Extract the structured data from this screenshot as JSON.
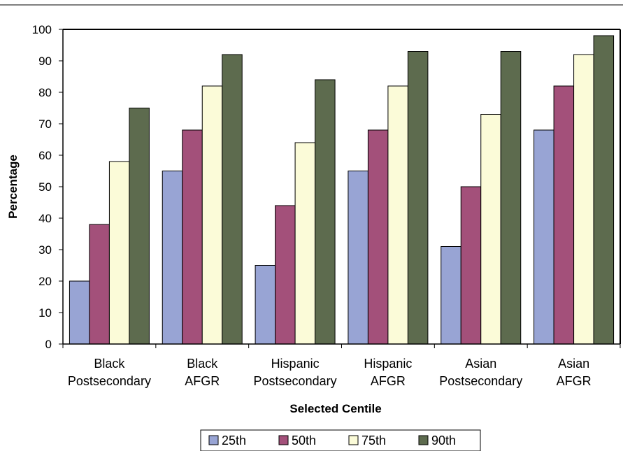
{
  "chart_data": {
    "type": "bar",
    "categories": [
      [
        "Black",
        "Postsecondary"
      ],
      [
        "Black",
        "AFGR"
      ],
      [
        "Hispanic",
        "Postsecondary"
      ],
      [
        "Hispanic",
        "AFGR"
      ],
      [
        "Asian",
        "Postsecondary"
      ],
      [
        "Asian",
        "AFGR"
      ]
    ],
    "series": [
      {
        "name": "25th",
        "color": "#98a4d4",
        "values": [
          20,
          55,
          25,
          55,
          31,
          68
        ]
      },
      {
        "name": "50th",
        "color": "#a3507a",
        "values": [
          38,
          68,
          44,
          68,
          50,
          82
        ]
      },
      {
        "name": "75th",
        "color": "#fbfbd8",
        "values": [
          58,
          82,
          64,
          82,
          73,
          92
        ]
      },
      {
        "name": "90th",
        "color": "#5d6b4e",
        "values": [
          75,
          92,
          84,
          93,
          93,
          98
        ]
      }
    ],
    "title": "",
    "xlabel": "Selected Centile",
    "ylabel": "Percentage",
    "ylim": [
      0,
      100
    ],
    "yticks": [
      "0",
      "10",
      "20",
      "30",
      "40",
      "50",
      "60",
      "70",
      "80",
      "90",
      "100"
    ],
    "grid": false,
    "legend": "bottom"
  }
}
